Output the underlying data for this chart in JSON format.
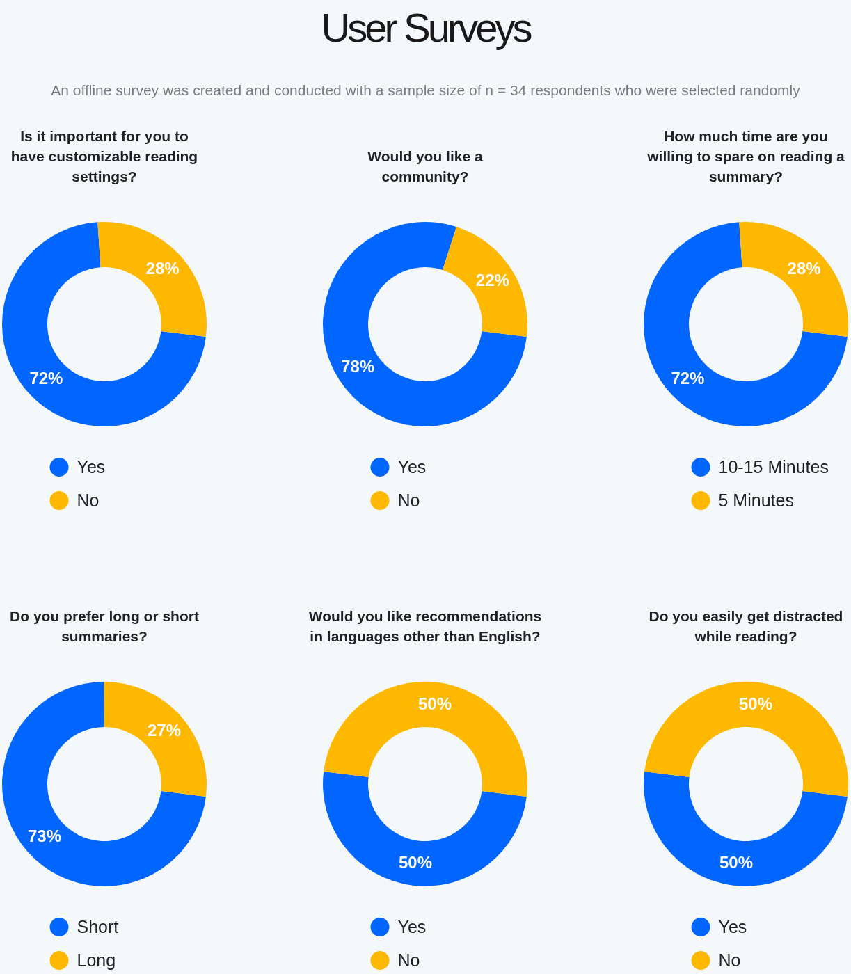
{
  "chart_data": [
    {
      "type": "other",
      "title": "User Surveys",
      "subtitle": "An offline survey was created and conducted with a sample size of n = 34 respondents who were selected randomly"
    },
    {
      "type": "donut",
      "title": "Is it important for you to have customizable reading settings?",
      "categories": [
        "Yes",
        "No"
      ],
      "values": [
        72,
        28
      ],
      "colors": [
        "#0066ff",
        "#ffb800"
      ],
      "value_labels": [
        "72%",
        "28%"
      ],
      "legend": "bottom"
    },
    {
      "type": "donut",
      "title": "Would you like a community?",
      "categories": [
        "Yes",
        "No"
      ],
      "values": [
        78,
        22
      ],
      "colors": [
        "#0066ff",
        "#ffb800"
      ],
      "value_labels": [
        "78%",
        "22%"
      ],
      "legend": "bottom"
    },
    {
      "type": "donut",
      "title": "How much time are you willing to spare on reading a summary?",
      "categories": [
        "10-15 Minutes",
        "5 Minutes"
      ],
      "values": [
        72,
        28
      ],
      "colors": [
        "#0066ff",
        "#ffb800"
      ],
      "value_labels": [
        "72%",
        "28%"
      ],
      "legend": "bottom"
    },
    {
      "type": "donut",
      "title": "Do you prefer long or short summaries?",
      "categories": [
        "Short",
        "Long"
      ],
      "values": [
        73,
        27
      ],
      "colors": [
        "#0066ff",
        "#ffb800"
      ],
      "value_labels": [
        "73%",
        "27%"
      ],
      "legend": "bottom"
    },
    {
      "type": "donut",
      "title": "Would you like recommendations in languages other than English?",
      "categories": [
        "Yes",
        "No"
      ],
      "values": [
        50,
        50
      ],
      "colors": [
        "#0066ff",
        "#ffb800"
      ],
      "value_labels": [
        "50%",
        "50%"
      ],
      "legend": "bottom"
    },
    {
      "type": "donut",
      "title": "Do you easily get distracted while reading?",
      "categories": [
        "Yes",
        "No"
      ],
      "values": [
        50,
        50
      ],
      "colors": [
        "#0066ff",
        "#ffb800"
      ],
      "value_labels": [
        "50%",
        "50%"
      ],
      "legend": "bottom"
    }
  ]
}
